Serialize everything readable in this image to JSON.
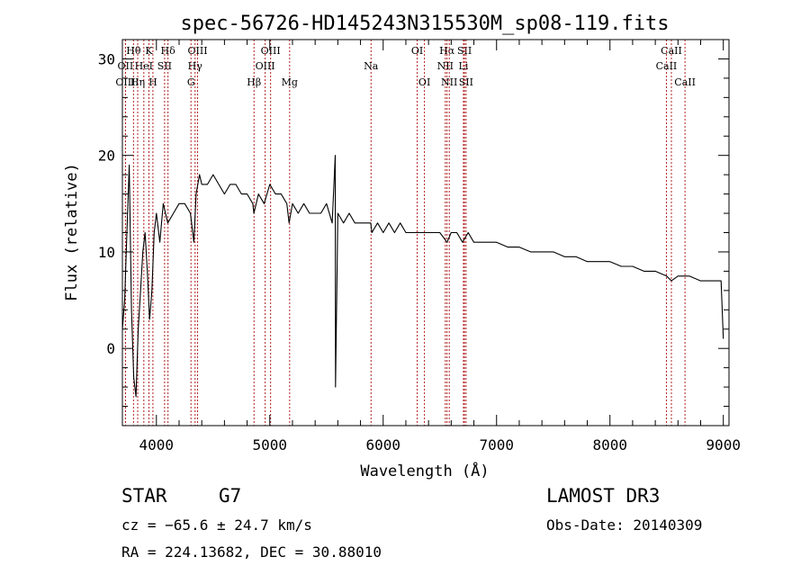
{
  "chart_data": {
    "type": "line",
    "title": "spec-56726-HD145243N315530M_sp08-119.fits",
    "xlabel": "Wavelength (Å)",
    "ylabel": "Flux (relative)",
    "xlim": [
      3700,
      9050
    ],
    "ylim": [
      -8,
      32
    ],
    "xticks": [
      4000,
      5000,
      6000,
      7000,
      8000,
      9000
    ],
    "yticks": [
      0,
      10,
      20,
      30
    ],
    "grid": false,
    "line_color": "#000000",
    "marker_color": "#b22222",
    "series": [
      {
        "name": "flux",
        "x": [
          3700,
          3720,
          3740,
          3760,
          3780,
          3800,
          3820,
          3840,
          3860,
          3880,
          3900,
          3920,
          3940,
          3960,
          3980,
          4000,
          4030,
          4060,
          4100,
          4150,
          4200,
          4250,
          4300,
          4330,
          4350,
          4380,
          4400,
          4450,
          4500,
          4550,
          4600,
          4650,
          4700,
          4750,
          4800,
          4850,
          4860,
          4900,
          4950,
          5000,
          5050,
          5100,
          5150,
          5170,
          5200,
          5250,
          5300,
          5350,
          5400,
          5450,
          5500,
          5550,
          5577,
          5580,
          5600,
          5650,
          5700,
          5750,
          5800,
          5850,
          5890,
          5900,
          5950,
          6000,
          6050,
          6100,
          6150,
          6200,
          6250,
          6300,
          6350,
          6400,
          6450,
          6500,
          6563,
          6600,
          6650,
          6700,
          6750,
          6800,
          6850,
          6900,
          6950,
          7000,
          7100,
          7200,
          7300,
          7400,
          7500,
          7600,
          7700,
          7800,
          7900,
          8000,
          8100,
          8200,
          8300,
          8400,
          8500,
          8542,
          8600,
          8700,
          8800,
          8900,
          8980,
          9000
        ],
        "y": [
          2,
          5,
          12,
          19,
          4,
          -3,
          -5,
          2,
          6,
          10,
          12,
          8,
          3,
          6,
          12,
          14,
          11,
          15,
          13,
          14,
          15,
          15,
          14,
          11,
          16,
          18,
          17,
          17,
          18,
          17,
          16,
          17,
          17,
          16,
          16,
          15,
          14,
          16,
          15,
          17,
          16,
          16,
          15,
          13,
          15,
          14,
          15,
          14,
          14,
          14,
          15,
          13,
          20,
          -4,
          14,
          13,
          14,
          13,
          13,
          13,
          13,
          12,
          13,
          12,
          13,
          12,
          13,
          12,
          12,
          12,
          12,
          12,
          12,
          12,
          11,
          12,
          12,
          11,
          12,
          11,
          11,
          11,
          11,
          11,
          10.5,
          10.5,
          10,
          10,
          10,
          9.5,
          9.5,
          9,
          9,
          9,
          8.5,
          8.5,
          8,
          8,
          7.5,
          7,
          7.5,
          7.5,
          7,
          7,
          7,
          1
        ]
      }
    ],
    "lines": [
      {
        "name": "Hθ",
        "x": 3798,
        "row": 1
      },
      {
        "name": "OII",
        "x": 3727,
        "row": 2
      },
      {
        "name": "OIII",
        "x": 3727,
        "row": 3
      },
      {
        "name": "K",
        "x": 3934,
        "row": 1
      },
      {
        "name": "HeI",
        "x": 3889,
        "row": 2
      },
      {
        "name": "Hη",
        "x": 3835,
        "row": 3
      },
      {
        "name": "H",
        "x": 3969,
        "row": 3
      },
      {
        "name": "SII",
        "x": 4072,
        "row": 2
      },
      {
        "name": "Hδ",
        "x": 4102,
        "row": 1
      },
      {
        "name": "OIII",
        "x": 4363,
        "row": 1
      },
      {
        "name": "Hγ",
        "x": 4341,
        "row": 2
      },
      {
        "name": "G",
        "x": 4305,
        "row": 3
      },
      {
        "name": "OIII",
        "x": 5007,
        "row": 1
      },
      {
        "name": "OIII",
        "x": 4959,
        "row": 2
      },
      {
        "name": "Hβ",
        "x": 4861,
        "row": 3
      },
      {
        "name": "Mg",
        "x": 5175,
        "row": 3
      },
      {
        "name": "Na",
        "x": 5893,
        "row": 2
      },
      {
        "name": "OI",
        "x": 6300,
        "row": 1
      },
      {
        "name": "OI",
        "x": 6364,
        "row": 3
      },
      {
        "name": "Hα",
        "x": 6563,
        "row": 1
      },
      {
        "name": "NII",
        "x": 6548,
        "row": 2
      },
      {
        "name": "NII",
        "x": 6583,
        "row": 3
      },
      {
        "name": "SII",
        "x": 6717,
        "row": 1
      },
      {
        "name": "Li",
        "x": 6708,
        "row": 2
      },
      {
        "name": "SII",
        "x": 6731,
        "row": 3
      },
      {
        "name": "CaII",
        "x": 8542,
        "row": 1
      },
      {
        "name": "CaII",
        "x": 8498,
        "row": 2
      },
      {
        "name": "CaII",
        "x": 8662,
        "row": 3
      }
    ]
  },
  "meta": {
    "class": "STAR",
    "subclass": "G7",
    "survey": "LAMOST DR3",
    "cz": "cz = −65.6 ± 24.7 km/s",
    "obs_date": "Obs-Date: 20140309",
    "radec": "RA = 224.13682, DEC =  30.88010"
  }
}
